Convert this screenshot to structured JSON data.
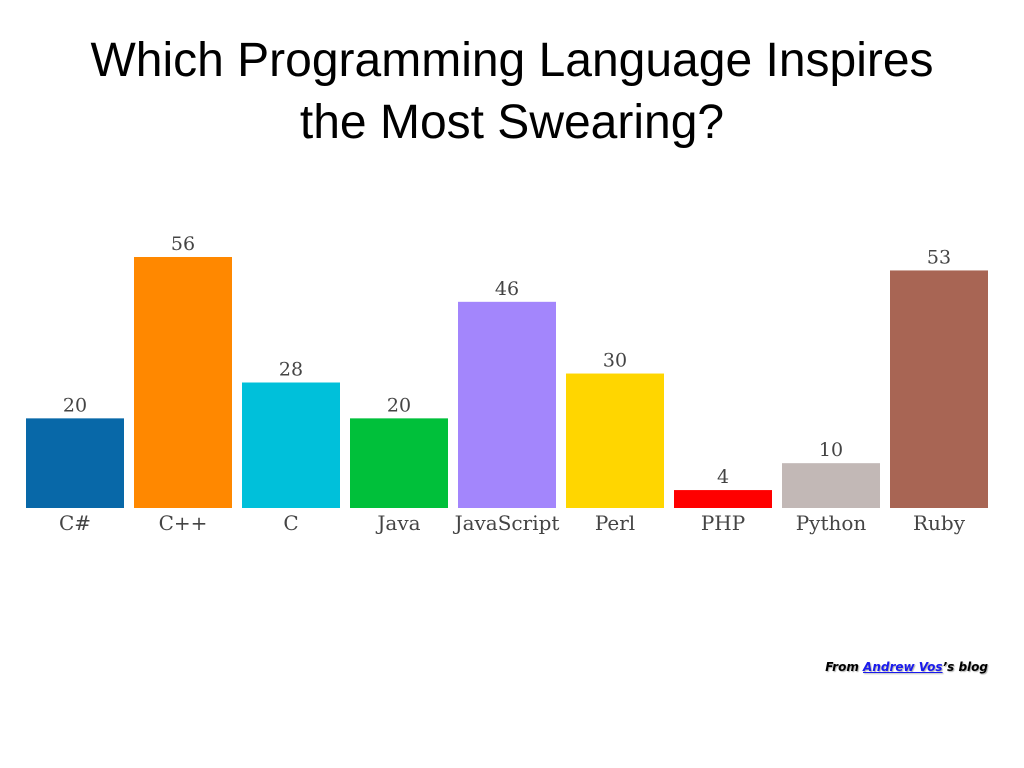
{
  "title_line1": "Which Programming Language Inspires",
  "title_line2": "the Most Swearing?",
  "chart_data": {
    "type": "bar",
    "categories": [
      "C#",
      "C++",
      "C",
      "Java",
      "JavaScript",
      "Perl",
      "PHP",
      "Python",
      "Ruby"
    ],
    "values": [
      20,
      56,
      28,
      20,
      46,
      30,
      4,
      10,
      53
    ],
    "colors": [
      "#0868a8",
      "#ff8800",
      "#00c0da",
      "#00c03a",
      "#a386fc",
      "#ffd600",
      "#ff0000",
      "#c2b8b6",
      "#a86554"
    ],
    "title": "",
    "xlabel": "",
    "ylabel": "",
    "ylim": [
      0,
      56
    ],
    "grid": false,
    "legend": "none",
    "data_labels": true
  },
  "credit": {
    "prefix": "From ",
    "author": "Andrew Vos",
    "suffix": "’s blog"
  }
}
